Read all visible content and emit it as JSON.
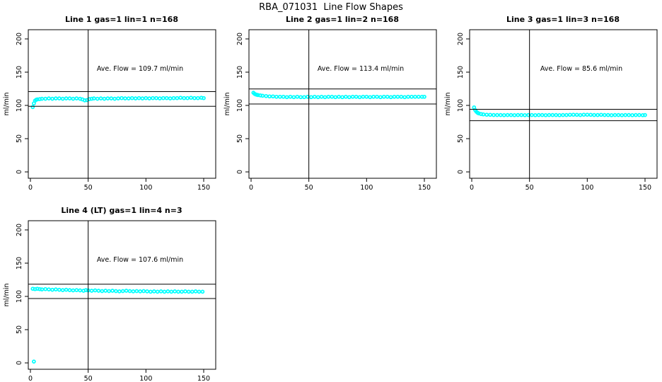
{
  "figure_title": "RBA_071031  Line Flow Shapes",
  "colors": {
    "points": "#00ffff",
    "axis": "#000000",
    "background": "#ffffff",
    "text": "#000000"
  },
  "axes": {
    "ylabel": "ml/min",
    "x_ticks": [
      0,
      50,
      100,
      150
    ],
    "y_ticks": [
      0,
      50,
      100,
      150,
      200
    ],
    "xlim": [
      -4,
      156
    ],
    "ylim": [
      -9,
      218
    ],
    "grid": false,
    "legend": "none"
  },
  "chart_data": [
    {
      "type": "scatter",
      "title": "Line 1 gas=1 lin=1 n=168",
      "annotation": "Ave. Flow =  109.7  ml/min",
      "ave_flow_ml_min": 109.7,
      "n": 168,
      "vline_x": 50,
      "hlines": [
        120.7,
        98.7
      ],
      "points": [
        [
          2,
          97.5
        ],
        [
          3,
          103
        ],
        [
          4,
          107
        ],
        [
          5,
          108.5
        ],
        [
          6,
          109
        ],
        [
          8,
          109.5
        ],
        [
          10,
          110
        ],
        [
          13,
          110
        ],
        [
          16,
          110.5
        ],
        [
          19,
          110
        ],
        [
          22,
          110.5
        ],
        [
          25,
          110.5
        ],
        [
          28,
          110
        ],
        [
          31,
          110.5
        ],
        [
          34,
          110.5
        ],
        [
          37,
          110
        ],
        [
          40,
          110.5
        ],
        [
          43,
          110
        ],
        [
          45,
          109
        ],
        [
          47,
          107.5
        ],
        [
          49,
          108
        ],
        [
          51,
          109.5
        ],
        [
          53,
          110
        ],
        [
          55,
          110.5
        ],
        [
          58,
          110
        ],
        [
          61,
          110.5
        ],
        [
          64,
          110
        ],
        [
          67,
          110.5
        ],
        [
          70,
          110.5
        ],
        [
          73,
          110
        ],
        [
          76,
          110.5
        ],
        [
          79,
          111
        ],
        [
          82,
          110.5
        ],
        [
          85,
          110.5
        ],
        [
          88,
          111
        ],
        [
          91,
          110.5
        ],
        [
          94,
          111
        ],
        [
          97,
          110.5
        ],
        [
          100,
          111
        ],
        [
          103,
          110.5
        ],
        [
          106,
          111
        ],
        [
          109,
          111
        ],
        [
          112,
          110.5
        ],
        [
          115,
          111
        ],
        [
          118,
          111
        ],
        [
          121,
          110.5
        ],
        [
          124,
          111
        ],
        [
          127,
          111
        ],
        [
          130,
          111.5
        ],
        [
          133,
          111
        ],
        [
          136,
          111
        ],
        [
          139,
          111.5
        ],
        [
          142,
          111
        ],
        [
          145,
          111
        ],
        [
          148,
          111.5
        ],
        [
          150,
          111
        ]
      ]
    },
    {
      "type": "scatter",
      "title": "Line 2 gas=1 lin=2 n=168",
      "annotation": "Ave. Flow =  113.4  ml/min",
      "ave_flow_ml_min": 113.4,
      "n": 168,
      "vline_x": 50,
      "hlines": [
        124.7,
        102.1
      ],
      "points": [
        [
          2,
          119
        ],
        [
          3,
          117.5
        ],
        [
          4,
          116.5
        ],
        [
          5,
          116
        ],
        [
          6,
          115.5
        ],
        [
          8,
          115
        ],
        [
          10,
          114.5
        ],
        [
          13,
          114
        ],
        [
          16,
          113.5
        ],
        [
          19,
          113.5
        ],
        [
          22,
          113
        ],
        [
          25,
          113
        ],
        [
          28,
          113
        ],
        [
          31,
          112.5
        ],
        [
          34,
          113
        ],
        [
          37,
          112.5
        ],
        [
          40,
          113
        ],
        [
          43,
          112.5
        ],
        [
          46,
          112.5
        ],
        [
          49,
          113
        ],
        [
          52,
          112.5
        ],
        [
          55,
          113
        ],
        [
          58,
          112.5
        ],
        [
          61,
          113
        ],
        [
          64,
          112.5
        ],
        [
          67,
          113
        ],
        [
          70,
          113
        ],
        [
          73,
          112.5
        ],
        [
          76,
          113
        ],
        [
          79,
          112.5
        ],
        [
          82,
          113
        ],
        [
          85,
          112.5
        ],
        [
          88,
          113
        ],
        [
          91,
          113
        ],
        [
          94,
          112.5
        ],
        [
          97,
          113
        ],
        [
          100,
          113
        ],
        [
          103,
          112.5
        ],
        [
          106,
          113
        ],
        [
          109,
          113
        ],
        [
          112,
          112.5
        ],
        [
          115,
          113
        ],
        [
          118,
          113
        ],
        [
          121,
          112.5
        ],
        [
          124,
          113
        ],
        [
          127,
          113
        ],
        [
          130,
          113
        ],
        [
          133,
          112.5
        ],
        [
          136,
          113
        ],
        [
          139,
          113
        ],
        [
          142,
          113
        ],
        [
          145,
          113
        ],
        [
          148,
          113
        ],
        [
          150,
          113
        ]
      ]
    },
    {
      "type": "scatter",
      "title": "Line 3 gas=1 lin=3 n=168",
      "annotation": "Ave. Flow =  85.6  ml/min",
      "ave_flow_ml_min": 85.6,
      "n": 168,
      "vline_x": 50,
      "hlines": [
        94.2,
        77.0
      ],
      "points": [
        [
          2,
          97
        ],
        [
          3,
          93
        ],
        [
          4,
          90.5
        ],
        [
          5,
          89
        ],
        [
          6,
          88
        ],
        [
          8,
          87
        ],
        [
          10,
          86.5
        ],
        [
          13,
          86
        ],
        [
          16,
          85.8
        ],
        [
          19,
          85.5
        ],
        [
          22,
          85.5
        ],
        [
          25,
          85.5
        ],
        [
          28,
          85.3
        ],
        [
          31,
          85.5
        ],
        [
          34,
          85.5
        ],
        [
          37,
          85.3
        ],
        [
          40,
          85.5
        ],
        [
          43,
          85.5
        ],
        [
          46,
          85.3
        ],
        [
          49,
          85.5
        ],
        [
          52,
          85.5
        ],
        [
          55,
          85.3
        ],
        [
          58,
          85.5
        ],
        [
          61,
          85.5
        ],
        [
          64,
          85.3
        ],
        [
          67,
          85.5
        ],
        [
          70,
          85.5
        ],
        [
          73,
          85.5
        ],
        [
          76,
          85.3
        ],
        [
          79,
          85.5
        ],
        [
          82,
          85.5
        ],
        [
          85,
          85.8
        ],
        [
          88,
          86
        ],
        [
          91,
          85.8
        ],
        [
          94,
          85.5
        ],
        [
          97,
          86
        ],
        [
          100,
          86
        ],
        [
          103,
          85.8
        ],
        [
          106,
          85.5
        ],
        [
          109,
          85.5
        ],
        [
          112,
          85.8
        ],
        [
          115,
          85.5
        ],
        [
          118,
          85.5
        ],
        [
          121,
          85.3
        ],
        [
          124,
          85.5
        ],
        [
          127,
          85.5
        ],
        [
          130,
          85.3
        ],
        [
          133,
          85.5
        ],
        [
          136,
          85.5
        ],
        [
          139,
          85.3
        ],
        [
          142,
          85.5
        ],
        [
          145,
          85.5
        ],
        [
          148,
          85.3
        ],
        [
          150,
          85.5
        ]
      ]
    },
    {
      "type": "scatter",
      "title": "Line 4 (LT) gas=1 lin=4 n=3",
      "annotation": "Ave. Flow =  107.6  ml/min",
      "ave_flow_ml_min": 107.6,
      "n": 3,
      "vline_x": 50,
      "hlines": [
        118.4,
        96.8
      ],
      "points": [
        [
          3,
          2
        ],
        [
          2,
          111.5
        ],
        [
          4,
          111
        ],
        [
          6,
          111.5
        ],
        [
          8,
          111
        ],
        [
          10,
          110.5
        ],
        [
          13,
          111
        ],
        [
          16,
          110.5
        ],
        [
          19,
          110
        ],
        [
          22,
          110.5
        ],
        [
          25,
          110
        ],
        [
          28,
          109.5
        ],
        [
          31,
          110
        ],
        [
          34,
          109.5
        ],
        [
          37,
          109
        ],
        [
          40,
          109.5
        ],
        [
          43,
          109
        ],
        [
          46,
          108.5
        ],
        [
          48,
          109.5
        ],
        [
          50,
          109
        ],
        [
          53,
          108.5
        ],
        [
          56,
          109
        ],
        [
          59,
          108.5
        ],
        [
          62,
          108
        ],
        [
          65,
          108.5
        ],
        [
          68,
          108
        ],
        [
          71,
          108.5
        ],
        [
          74,
          108
        ],
        [
          77,
          107.5
        ],
        [
          80,
          108
        ],
        [
          83,
          108.5
        ],
        [
          86,
          108
        ],
        [
          89,
          107.5
        ],
        [
          92,
          108
        ],
        [
          95,
          107.5
        ],
        [
          98,
          108
        ],
        [
          101,
          107.5
        ],
        [
          104,
          107
        ],
        [
          107,
          107.5
        ],
        [
          110,
          107
        ],
        [
          113,
          107.5
        ],
        [
          116,
          107
        ],
        [
          119,
          107.5
        ],
        [
          122,
          107
        ],
        [
          125,
          107.5
        ],
        [
          128,
          107
        ],
        [
          131,
          107
        ],
        [
          134,
          107.5
        ],
        [
          137,
          107
        ],
        [
          140,
          107
        ],
        [
          143,
          107.5
        ],
        [
          146,
          107
        ],
        [
          149,
          107
        ]
      ]
    }
  ]
}
